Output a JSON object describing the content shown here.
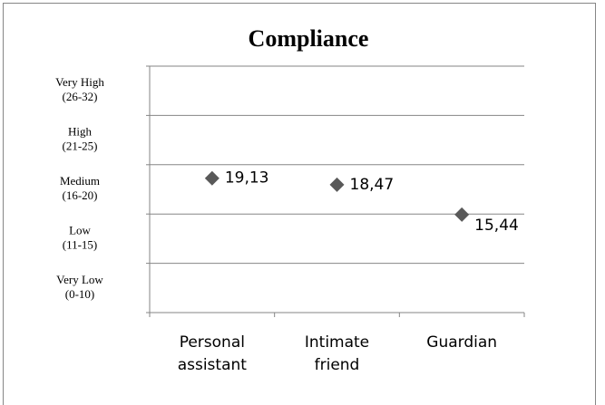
{
  "chart_data": {
    "type": "scatter",
    "title": "Compliance",
    "categories": [
      "Personal assistant",
      "Intimate friend",
      "Guardian"
    ],
    "values": [
      19.13,
      18.47,
      15.44
    ],
    "value_labels": [
      "19,13",
      "18,47",
      "15,44"
    ],
    "color": "#595959",
    "ylim": [
      5.5,
      30.5
    ],
    "yticks": [
      5.5,
      10.5,
      15.5,
      20.5,
      25.5,
      30.5
    ],
    "grid": true,
    "y_bands": [
      {
        "label": "Very Low",
        "range": "(0-10)"
      },
      {
        "label": "Low",
        "range": "(11-15)"
      },
      {
        "label": "Medium",
        "range": "(16-20)"
      },
      {
        "label": "High",
        "range": "(21-25)"
      },
      {
        "label": "Very High",
        "range": "(26-32)"
      }
    ]
  }
}
